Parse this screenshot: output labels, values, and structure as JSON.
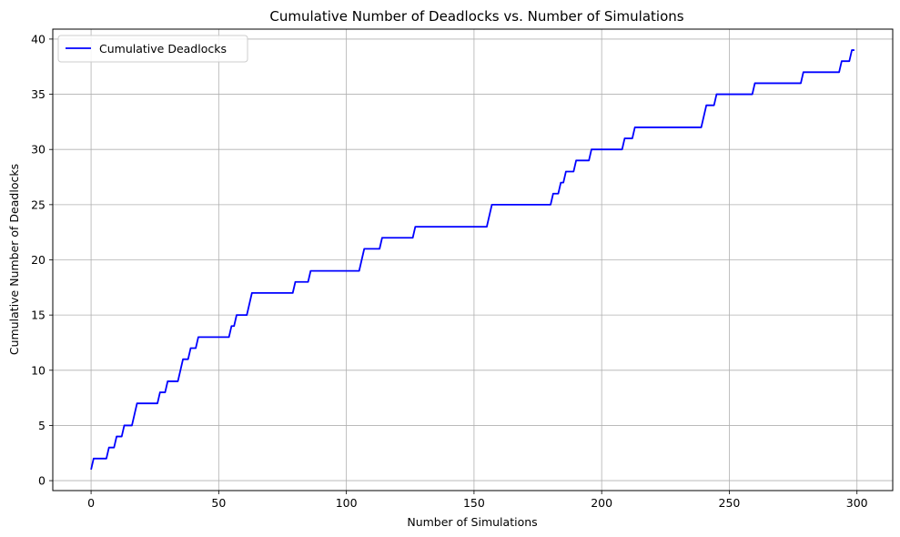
{
  "chart_data": {
    "type": "line",
    "title": "Cumulative Number of Deadlocks vs. Number of Simulations",
    "xlabel": "Number of Simulations",
    "ylabel": "Cumulative Number of Deadlocks",
    "xlim": [
      -15,
      314
    ],
    "ylim": [
      -0.9,
      40.9
    ],
    "xticks": [
      0,
      50,
      100,
      150,
      200,
      250,
      300
    ],
    "yticks": [
      0,
      5,
      10,
      15,
      20,
      25,
      30,
      35,
      40
    ],
    "grid": true,
    "legend_position": "top-left",
    "series": [
      {
        "name": "Cumulative Deadlocks",
        "color": "#0000ff",
        "step_points": [
          [
            0,
            1
          ],
          [
            1,
            2
          ],
          [
            7,
            3
          ],
          [
            10,
            4
          ],
          [
            13,
            5
          ],
          [
            17,
            6
          ],
          [
            18,
            7
          ],
          [
            27,
            8
          ],
          [
            30,
            9
          ],
          [
            35,
            10
          ],
          [
            36,
            11
          ],
          [
            39,
            12
          ],
          [
            42,
            13
          ],
          [
            55,
            14
          ],
          [
            57,
            15
          ],
          [
            62,
            16
          ],
          [
            63,
            17
          ],
          [
            80,
            18
          ],
          [
            86,
            19
          ],
          [
            106,
            20
          ],
          [
            107,
            21
          ],
          [
            114,
            22
          ],
          [
            127,
            23
          ],
          [
            156,
            24
          ],
          [
            157,
            25
          ],
          [
            181,
            26
          ],
          [
            184,
            27
          ],
          [
            186,
            28
          ],
          [
            190,
            29
          ],
          [
            196,
            30
          ],
          [
            209,
            31
          ],
          [
            213,
            32
          ],
          [
            240,
            33
          ],
          [
            241,
            34
          ],
          [
            245,
            35
          ],
          [
            260,
            36
          ],
          [
            279,
            37
          ],
          [
            294,
            38
          ],
          [
            298,
            39
          ],
          [
            299,
            39
          ]
        ]
      }
    ]
  }
}
